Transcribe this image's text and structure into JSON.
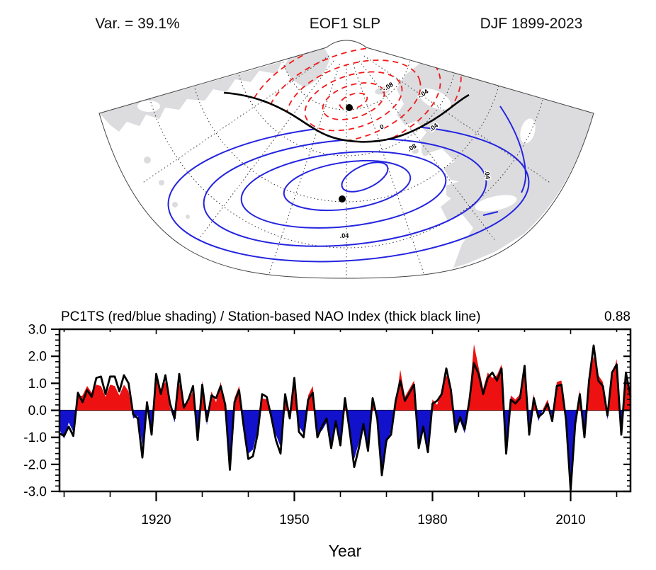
{
  "figure": {
    "title_left": "Var. = 39.1%",
    "title_center": "EOF1 SLP",
    "title_right": "DJF 1899-2023"
  },
  "map": {
    "description": "EOF1 SLP loading pattern over the North Atlantic sector",
    "contour_labels": [
      "-.08",
      "-.04",
      "0",
      ".04",
      ".08",
      ".04",
      ".04"
    ],
    "marked_centers": 2,
    "colors": {
      "negative_contour": "#f21818",
      "positive_contour": "#2424e0",
      "zero_contour": "#000000",
      "land": "#dcdcdf"
    }
  },
  "chart": {
    "title": "PC1TS (red/blue shading) / Station-based NAO Index (thick black line)",
    "correlation_label": "0.88",
    "xlabel": "Year",
    "colors": {
      "positive_fill": "#ee1111",
      "negative_fill": "#1212cc",
      "line": "#000000"
    }
  },
  "chart_data": {
    "type": "area+line",
    "x_start": 1899,
    "x_end": 2023,
    "xticks_major": [
      1920,
      1950,
      1980,
      2010
    ],
    "xtick_minor_step": 10,
    "ylim": [
      -3,
      3
    ],
    "ytick_major_step": 1,
    "ytick_minor_step": 0.2,
    "legend_note": "red/blue shading = PC1TS; thick black line = station-based NAO index; 0.88 = correlation",
    "series": [
      {
        "name": "PC1TS",
        "style": "area-red-blue",
        "values": [
          -0.7,
          -1.05,
          -0.45,
          -0.8,
          0.5,
          0.55,
          0.9,
          0.65,
          0.95,
          0.9,
          0.5,
          0.95,
          0.9,
          0.55,
          0.95,
          0.7,
          -0.3,
          -0.2,
          -1.3,
          0.15,
          -0.75,
          1.1,
          0.8,
          1.05,
          0.1,
          -0.45,
          1.0,
          0.25,
          0.3,
          0.75,
          -0.9,
          1.1,
          -0.55,
          0.7,
          0.3,
          1.05,
          0.1,
          -1.9,
          0.45,
          0.9,
          -0.45,
          -1.6,
          -1.45,
          -0.75,
          0.45,
          0.4,
          -0.4,
          -0.9,
          -1.35,
          0.45,
          -0.2,
          1.0,
          -0.6,
          -0.85,
          0.55,
          0.9,
          -0.85,
          -0.75,
          -0.45,
          -1.2,
          -0.55,
          -1.1,
          0.3,
          -0.9,
          -1.8,
          -1.2,
          -0.65,
          -1.3,
          0.3,
          -0.45,
          -2.1,
          -1.25,
          -0.75,
          0.2,
          1.5,
          0.5,
          0.8,
          1.1,
          -1.2,
          -0.75,
          -1.3,
          0.4,
          0.2,
          0.75,
          1.3,
          0.9,
          -0.65,
          -0.4,
          -0.85,
          0.5,
          2.45,
          1.6,
          0.8,
          1.4,
          1.2,
          1.3,
          1.7,
          -1.3,
          0.55,
          0.4,
          0.6,
          1.4,
          -0.75,
          0.6,
          -0.4,
          0.05,
          0.4,
          -0.25,
          1.05,
          1.1,
          -0.5,
          -2.6,
          -0.65,
          0.75,
          -0.85,
          1.25,
          2.0,
          1.3,
          1.05,
          -0.35,
          1.2,
          1.9,
          -0.75,
          1.2,
          0.6
        ]
      },
      {
        "name": "Station-based NAO Index",
        "style": "thick-black-line",
        "values": [
          -0.85,
          -0.95,
          -0.6,
          -0.95,
          0.65,
          0.3,
          0.75,
          0.5,
          1.2,
          1.25,
          0.6,
          1.25,
          1.25,
          0.7,
          1.3,
          1.0,
          -0.15,
          -0.3,
          -1.75,
          0.3,
          -0.9,
          1.35,
          0.6,
          1.3,
          0.25,
          -0.3,
          1.35,
          0.1,
          0.4,
          0.9,
          -1.1,
          0.95,
          -0.4,
          0.55,
          0.45,
          0.9,
          0.2,
          -2.2,
          0.3,
          0.75,
          -0.6,
          -1.8,
          -1.7,
          -0.9,
          0.6,
          0.5,
          -0.25,
          -1.1,
          -1.6,
          0.6,
          -0.3,
          1.2,
          -0.8,
          -1.0,
          0.4,
          0.65,
          -1.0,
          -0.6,
          -0.3,
          -1.4,
          -0.4,
          -1.3,
          0.45,
          -0.75,
          -2.1,
          -1.4,
          -0.5,
          -1.5,
          0.45,
          -0.3,
          -2.4,
          -1.1,
          -0.9,
          0.35,
          1.1,
          0.35,
          0.65,
          0.95,
          -1.4,
          -0.6,
          -1.55,
          0.25,
          0.35,
          0.6,
          1.55,
          0.75,
          -0.8,
          -0.25,
          -0.7,
          0.35,
          1.75,
          1.35,
          0.6,
          1.2,
          1.4,
          1.1,
          1.55,
          -1.6,
          0.4,
          0.25,
          0.45,
          1.65,
          -0.9,
          0.45,
          -0.25,
          -0.1,
          0.25,
          -0.4,
          0.9,
          0.95,
          -0.35,
          -2.95,
          -0.5,
          0.6,
          -1.0,
          1.1,
          2.4,
          1.1,
          0.9,
          -0.2,
          1.4,
          1.7,
          -0.9,
          1.4,
          0.5
        ]
      }
    ]
  }
}
